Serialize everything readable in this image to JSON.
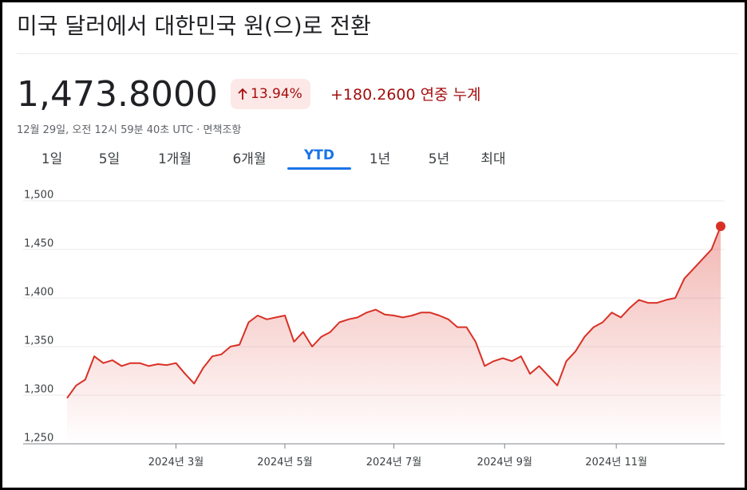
{
  "title": "미국 달러에서 대한민국 원(으)로 전환",
  "price": "1,473.8000",
  "change_percent": "13.94%",
  "change_abs": "+180.2600",
  "change_period": "연중 누계",
  "timestamp": "12월 29일, 오전 12시 59분 40초 UTC · ",
  "disclaimer": "면책조항",
  "tabs": [
    "1일",
    "5일",
    "1개월",
    "6개월",
    "YTD",
    "1년",
    "5년",
    "최대"
  ],
  "active_tab": 4,
  "chart_data": {
    "type": "line",
    "color": "#d93025",
    "grid": true,
    "values": [
      1297,
      1310,
      1316,
      1340,
      1333,
      1336,
      1330,
      1333,
      1333,
      1330,
      1332,
      1331,
      1333,
      1322,
      1312,
      1328,
      1340,
      1342,
      1350,
      1352,
      1375,
      1382,
      1378,
      1380,
      1382,
      1355,
      1365,
      1350,
      1360,
      1365,
      1375,
      1378,
      1380,
      1385,
      1388,
      1383,
      1382,
      1380,
      1382,
      1385,
      1385,
      1382,
      1378,
      1370,
      1370,
      1355,
      1330,
      1335,
      1338,
      1335,
      1340,
      1322,
      1330,
      1320,
      1310,
      1335,
      1345,
      1360,
      1370,
      1375,
      1385,
      1380,
      1390,
      1398,
      1395,
      1395,
      1398,
      1400,
      1420,
      1430,
      1440,
      1450,
      1473.8
    ],
    "xlim": [
      0,
      72
    ],
    "xticks": [
      {
        "value": 12,
        "label": "2024년 3월"
      },
      {
        "value": 24,
        "label": "2024년 5월"
      },
      {
        "value": 36,
        "label": "2024년 7월"
      },
      {
        "value": 48.2,
        "label": "2024년 9월"
      },
      {
        "value": 60.5,
        "label": "2024년 11월"
      }
    ],
    "ylim": [
      1250,
      1500
    ],
    "yticks": [
      {
        "value": 1250,
        "label": "1,250"
      },
      {
        "value": 1300,
        "label": "1,300"
      },
      {
        "value": 1350,
        "label": "1,350"
      },
      {
        "value": 1400,
        "label": "1,400"
      },
      {
        "value": 1450,
        "label": "1,450"
      },
      {
        "value": 1500,
        "label": "1,500"
      }
    ]
  }
}
